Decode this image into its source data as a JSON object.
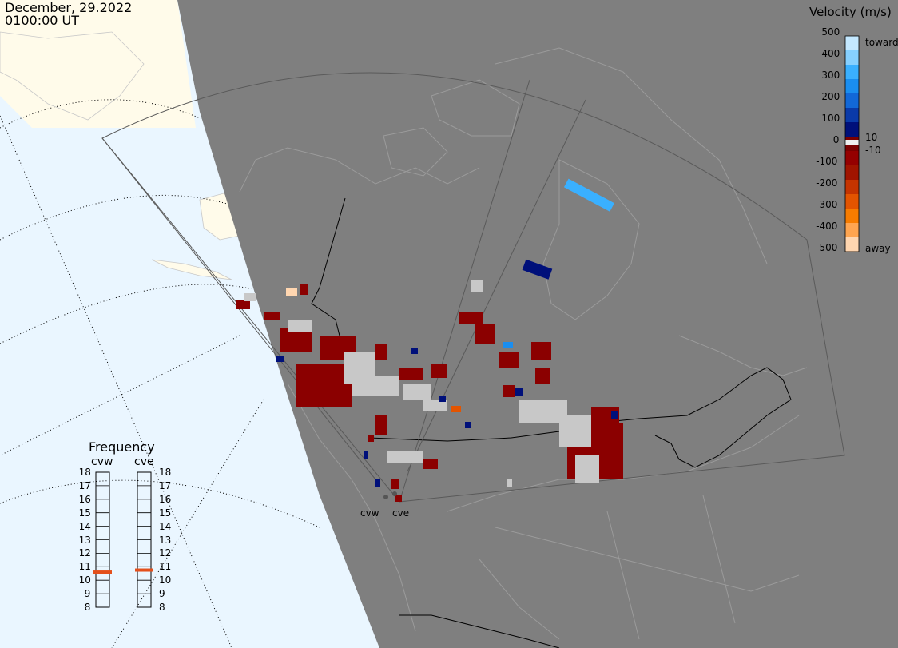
{
  "header": {
    "date": "December, 29.2022",
    "time": "0100:00 UT"
  },
  "velocity_legend": {
    "title": "Velocity (m/s)",
    "ticks": [
      "500",
      "400",
      "300",
      "200",
      "100",
      "0",
      "-100",
      "-200",
      "-300",
      "-400",
      "-500"
    ],
    "labels": {
      "toward": "toward",
      "plus": "10",
      "minus": "-10",
      "away": "away"
    },
    "colors": [
      "#c4e8ff",
      "#86d0ff",
      "#3ab0ff",
      "#1a8ef0",
      "#1268d8",
      "#0a3aa8",
      "#00107a",
      "#7a0000",
      "#950000",
      "#a01400",
      "#c53400",
      "#e35400",
      "#f77c00",
      "#ffa550",
      "#ffd6b0"
    ]
  },
  "frequency_panel": {
    "title": "Frequency",
    "radars": [
      {
        "name": "cvw",
        "freq_mhz": 10.6
      },
      {
        "name": "cve",
        "freq_mhz": 10.75
      }
    ],
    "scale": [
      "18",
      "17",
      "16",
      "15",
      "14",
      "13",
      "12",
      "11",
      "10",
      "9",
      "8"
    ],
    "marker_color": "#e4501c"
  },
  "sites": {
    "west": "cvw",
    "east": "cve"
  },
  "colors": {
    "night": "#7f7f7f",
    "ocean_day": "#eaf6ff",
    "land_day": "#fffbea",
    "coast": "#9b9b9b",
    "fov": "#5a5a5a"
  }
}
